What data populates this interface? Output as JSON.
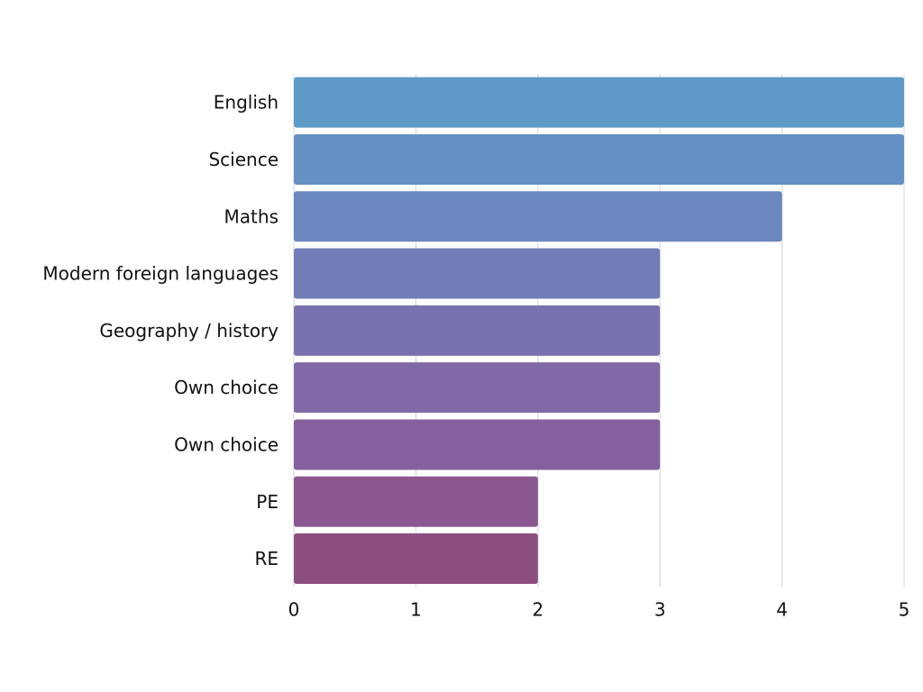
{
  "chart_data": {
    "type": "bar",
    "orientation": "horizontal",
    "categories": [
      "English",
      "Science",
      "Maths",
      "Modern foreign languages",
      "Geography / history",
      "Own choice",
      "Own choice",
      "PE",
      "RE"
    ],
    "values": [
      5,
      5,
      4,
      3,
      3,
      3,
      3,
      2,
      2
    ],
    "xlim": [
      0,
      5
    ],
    "xticks": [
      0,
      1,
      2,
      3,
      4,
      5
    ],
    "grid": "vertical",
    "legend": "none",
    "colors": [
      "#5e9ac5",
      "#6591c3",
      "#6b87be",
      "#727db8",
      "#7a72b0",
      "#8169a7",
      "#86609e",
      "#8a5791",
      "#8c4e7e"
    ]
  }
}
